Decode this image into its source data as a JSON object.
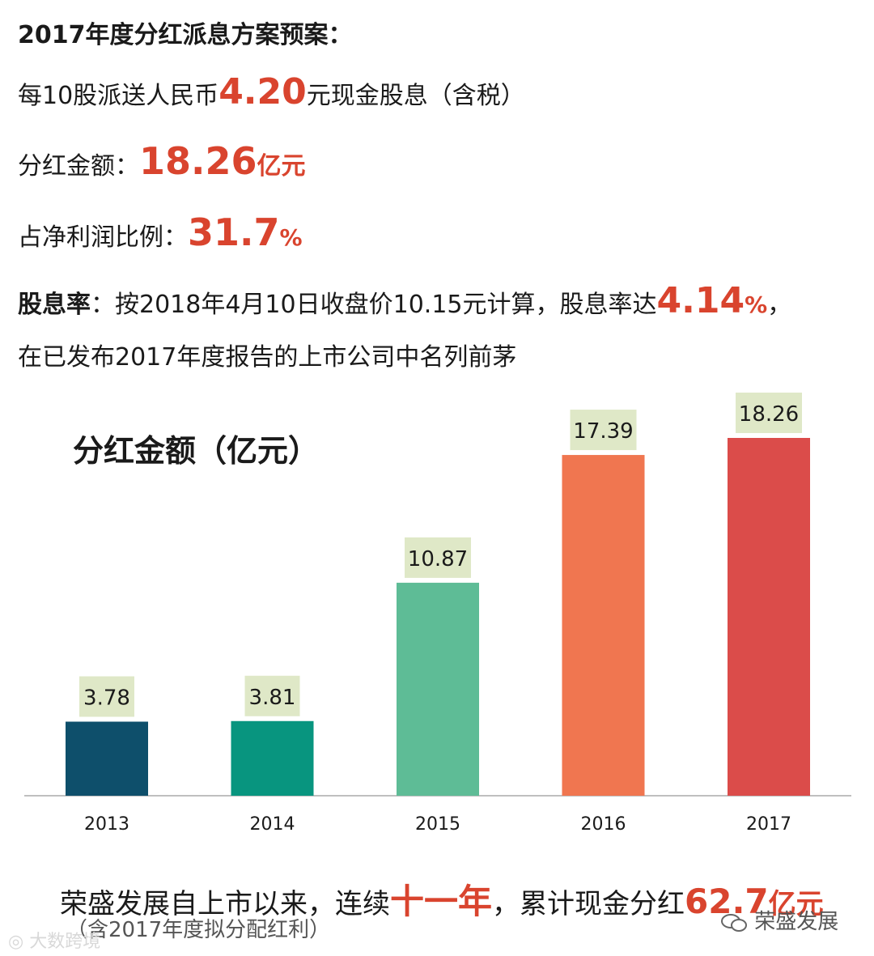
{
  "header": {
    "title": "2017年度分红派息方案预案：",
    "dividend_prefix": "每10股派送人民币",
    "dividend_value": "4.20",
    "dividend_suffix": "元现金股息（含税）",
    "amount_label": "分红金额：",
    "amount_value": "18.26",
    "amount_unit": "亿元",
    "ratio_label": "占净利润比例：",
    "ratio_value": "31.7",
    "ratio_unit": "%",
    "yield_label": "股息率",
    "yield_text": "：按2018年4月10日收盘价10.15元计算，股息率达",
    "yield_value": "4.14",
    "yield_unit": "%",
    "yield_tail": "，",
    "yield_line2": "在已发布2017年度报告的上市公司中名列前茅"
  },
  "chart_data": {
    "type": "bar",
    "title": "分红金额（亿元）",
    "categories": [
      "2013",
      "2014",
      "2015",
      "2016",
      "2017"
    ],
    "values": [
      3.78,
      3.81,
      10.87,
      17.39,
      18.26
    ],
    "value_labels": [
      "3.78",
      "3.81",
      "10.87",
      "17.39",
      "18.26"
    ],
    "colors": [
      "#0e4f6b",
      "#08957f",
      "#5ebc96",
      "#f07650",
      "#db4c4a"
    ],
    "label_bg": "#dfe8c7",
    "ylim": [
      0,
      18.26
    ]
  },
  "footer": {
    "text_prefix": "荣盛发展自上市以来，连续",
    "text_highlight": "十一年",
    "text_mid": "，累计现金分红",
    "total_value": "62.7",
    "total_unit": "亿元",
    "note": "（含2017年度拟分配红利）",
    "watermark_left": "大数跨境",
    "watermark_right": "荣盛发展"
  }
}
